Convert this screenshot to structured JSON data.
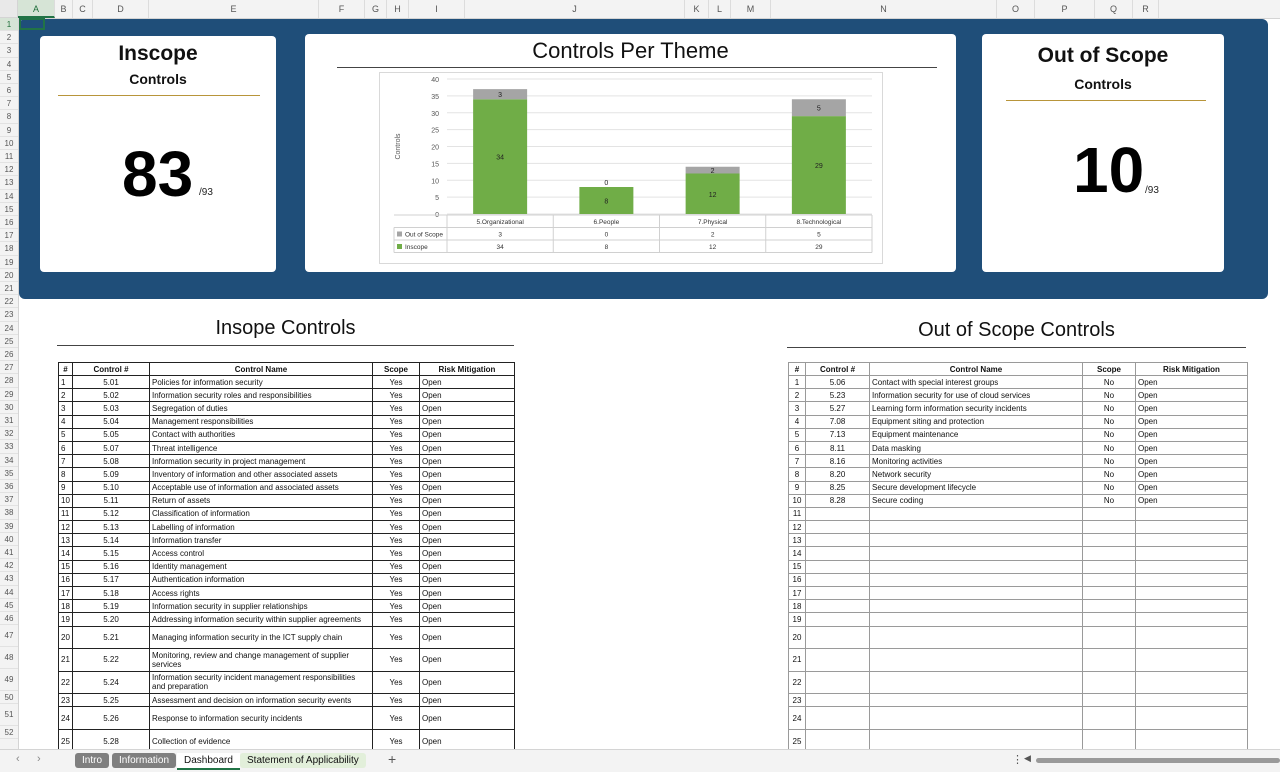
{
  "column_headers": [
    "A",
    "B",
    "C",
    "D",
    "E",
    "F",
    "G",
    "H",
    "I",
    "J",
    "K",
    "L",
    "M",
    "N",
    "O",
    "P",
    "Q",
    "R"
  ],
  "row_count": 52,
  "inscope_card": {
    "title": "Inscope",
    "subtitle": "Controls",
    "count": "83",
    "total": "/93"
  },
  "outscope_card": {
    "title": "Out of Scope",
    "subtitle": "Controls",
    "count": "10",
    "total": "/93"
  },
  "chart": {
    "title": "Controls Per Theme",
    "ylabel": "Controls",
    "yticks": [
      "40",
      "35",
      "30",
      "25",
      "20",
      "15",
      "10",
      "5",
      "0"
    ]
  },
  "chart_data": {
    "type": "bar",
    "stacked": true,
    "title": "Controls Per Theme",
    "ylabel": "Controls",
    "ylim": [
      0,
      40
    ],
    "categories": [
      "5.Organizational",
      "6.People",
      "7.Physical",
      "8.Technological"
    ],
    "series": [
      {
        "name": "Inscope",
        "values": [
          34,
          8,
          12,
          29
        ],
        "color": "#70ad47"
      },
      {
        "name": "Out of Scope",
        "values": [
          3,
          0,
          2,
          5
        ],
        "color": "#a5a5a5"
      }
    ],
    "data_table": true
  },
  "inscope_section": {
    "title": "Insope Controls",
    "headers": [
      "#",
      "Control #",
      "Control Name",
      "Scope",
      "Risk Mitigation"
    ],
    "rows": [
      [
        "1",
        "5.01",
        "Policies for information security",
        "Yes",
        "Open"
      ],
      [
        "2",
        "5.02",
        "Information security roles and responsibilities",
        "Yes",
        "Open"
      ],
      [
        "3",
        "5.03",
        "Segregation of duties",
        "Yes",
        "Open"
      ],
      [
        "4",
        "5.04",
        "Management responsibilities",
        "Yes",
        "Open"
      ],
      [
        "5",
        "5.05",
        "Contact with authorities",
        "Yes",
        "Open"
      ],
      [
        "6",
        "5.07",
        "Threat intelligence",
        "Yes",
        "Open"
      ],
      [
        "7",
        "5.08",
        "Information security in project management",
        "Yes",
        "Open"
      ],
      [
        "8",
        "5.09",
        "Inventory of information and other associated assets",
        "Yes",
        "Open"
      ],
      [
        "9",
        "5.10",
        "Acceptable use of information and associated assets",
        "Yes",
        "Open"
      ],
      [
        "10",
        "5.11",
        "Return of assets",
        "Yes",
        "Open"
      ],
      [
        "11",
        "5.12",
        "Classification of information",
        "Yes",
        "Open"
      ],
      [
        "12",
        "5.13",
        "Labelling of information",
        "Yes",
        "Open"
      ],
      [
        "13",
        "5.14",
        "Information transfer",
        "Yes",
        "Open"
      ],
      [
        "14",
        "5.15",
        "Access control",
        "Yes",
        "Open"
      ],
      [
        "15",
        "5.16",
        "Identity management",
        "Yes",
        "Open"
      ],
      [
        "16",
        "5.17",
        "Authentication information",
        "Yes",
        "Open"
      ],
      [
        "17",
        "5.18",
        "Access rights",
        "Yes",
        "Open"
      ],
      [
        "18",
        "5.19",
        "Information security in supplier relationships",
        "Yes",
        "Open"
      ],
      [
        "19",
        "5.20",
        "Addressing information security within supplier agreements",
        "Yes",
        "Open"
      ],
      [
        "20",
        "5.21",
        "Managing information security in the ICT supply chain",
        "Yes",
        "Open"
      ],
      [
        "21",
        "5.22",
        "Monitoring, review and change management of supplier services",
        "Yes",
        "Open"
      ],
      [
        "22",
        "5.24",
        "Information security incident management responsibilities and preparation",
        "Yes",
        "Open"
      ],
      [
        "23",
        "5.25",
        "Assessment and decision on information security events",
        "Yes",
        "Open"
      ],
      [
        "24",
        "5.26",
        "Response to information security incidents",
        "Yes",
        "Open"
      ],
      [
        "25",
        "5.28",
        "Collection of evidence",
        "Yes",
        "Open"
      ]
    ]
  },
  "outscope_section": {
    "title": "Out of Scope Controls",
    "headers": [
      "#",
      "Control #",
      "Control Name",
      "Scope",
      "Risk Mitigation"
    ],
    "rows": [
      [
        "1",
        "5.06",
        "Contact with special interest groups",
        "No",
        "Open"
      ],
      [
        "2",
        "5.23",
        "Information security for use of cloud services",
        "No",
        "Open"
      ],
      [
        "3",
        "5.27",
        "Learning form information security incidents",
        "No",
        "Open"
      ],
      [
        "4",
        "7.08",
        "Equipment siting and protection",
        "No",
        "Open"
      ],
      [
        "5",
        "7.13",
        "Equipment maintenance",
        "No",
        "Open"
      ],
      [
        "6",
        "8.11",
        "Data masking",
        "No",
        "Open"
      ],
      [
        "7",
        "8.16",
        "Monitoring activities",
        "No",
        "Open"
      ],
      [
        "8",
        "8.20",
        "Network security",
        "No",
        "Open"
      ],
      [
        "9",
        "8.25",
        "Secure development lifecycle",
        "No",
        "Open"
      ],
      [
        "10",
        "8.28",
        "Secure coding",
        "No",
        "Open"
      ],
      [
        "11",
        "",
        "",
        "",
        ""
      ],
      [
        "12",
        "",
        "",
        "",
        ""
      ],
      [
        "13",
        "",
        "",
        "",
        ""
      ],
      [
        "14",
        "",
        "",
        "",
        ""
      ],
      [
        "15",
        "",
        "",
        "",
        ""
      ],
      [
        "16",
        "",
        "",
        "",
        ""
      ],
      [
        "17",
        "",
        "",
        "",
        ""
      ],
      [
        "18",
        "",
        "",
        "",
        ""
      ],
      [
        "19",
        "",
        "",
        "",
        ""
      ],
      [
        "20",
        "",
        "",
        "",
        ""
      ],
      [
        "21",
        "",
        "",
        "",
        ""
      ],
      [
        "22",
        "",
        "",
        "",
        ""
      ],
      [
        "23",
        "",
        "",
        "",
        ""
      ],
      [
        "24",
        "",
        "",
        "",
        ""
      ],
      [
        "25",
        "",
        "",
        "",
        ""
      ]
    ]
  },
  "sheet_tabs": [
    {
      "label": "Intro",
      "style": "grey"
    },
    {
      "label": "Information",
      "style": "grey"
    },
    {
      "label": "Dashboard",
      "style": "active"
    },
    {
      "label": "Statement of Applicability",
      "style": "green"
    }
  ],
  "icons": {
    "prev": "chevron-left-icon",
    "next": "chevron-right-icon",
    "add": "plus-icon"
  }
}
